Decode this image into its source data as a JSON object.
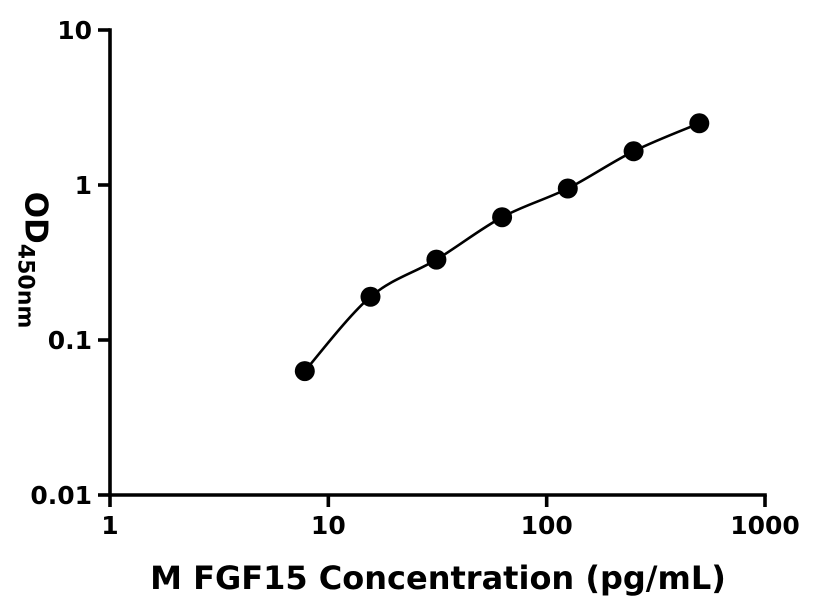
{
  "figure": {
    "background": "#ffffff",
    "axis_color": "#000000",
    "marker_color": "#000000",
    "curve_color": "#000000"
  },
  "chart_data": {
    "type": "scatter",
    "title": "",
    "xlabel": "M FGF15 Concentration (pg/mL)",
    "ylabel_main": "OD",
    "ylabel_sub": "450nm",
    "xscale": "log",
    "yscale": "log",
    "xlim": [
      1,
      1000
    ],
    "ylim": [
      0.01,
      10
    ],
    "grid": false,
    "legend": "none",
    "xticks": [
      {
        "value": 1,
        "label": "1"
      },
      {
        "value": 10,
        "label": "10"
      },
      {
        "value": 100,
        "label": "100"
      },
      {
        "value": 1000,
        "label": "1000"
      }
    ],
    "yticks": [
      {
        "value": 0.01,
        "label": "0.01"
      },
      {
        "value": 0.1,
        "label": "0.1"
      },
      {
        "value": 1,
        "label": "1"
      },
      {
        "value": 10,
        "label": "10"
      }
    ],
    "series": [
      {
        "marker": "filled-circle",
        "marker_radius": 10,
        "color": "#000000",
        "curve_color": "#000000",
        "points": [
          {
            "x": 7.8,
            "y": 0.063
          },
          {
            "x": 15.6,
            "y": 0.19
          },
          {
            "x": 31.25,
            "y": 0.33
          },
          {
            "x": 62.5,
            "y": 0.62
          },
          {
            "x": 125,
            "y": 0.95
          },
          {
            "x": 250,
            "y": 1.65
          },
          {
            "x": 500,
            "y": 2.5
          }
        ]
      }
    ]
  }
}
